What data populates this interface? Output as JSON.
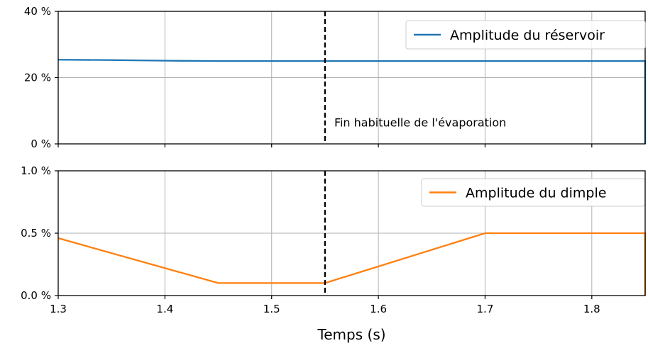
{
  "chart_data": [
    {
      "type": "line",
      "xlabel": "",
      "ylabel": "",
      "xlim": [
        1.3,
        1.85
      ],
      "ylim": [
        0,
        40
      ],
      "x_ticks": [
        1.3,
        1.4,
        1.5,
        1.6,
        1.7,
        1.8
      ],
      "y_ticks": [
        "0 %",
        "20 %",
        "40 %"
      ],
      "y_tick_values": [
        0,
        20,
        40
      ],
      "grid": true,
      "legend_position": "top-right",
      "series": [
        {
          "name": "Amplitude du réservoir",
          "color": "#1f77b4",
          "x": [
            1.3,
            1.35,
            1.4,
            1.45,
            1.5,
            1.55,
            1.6,
            1.7,
            1.8,
            1.85,
            1.85
          ],
          "y": [
            25.4,
            25.3,
            25.1,
            25.0,
            25.0,
            25.0,
            25.0,
            25.0,
            25.0,
            25.0,
            0
          ]
        }
      ],
      "vline": {
        "x": 1.55,
        "style": "dashed",
        "color": "#000000"
      },
      "annotations": [
        {
          "text": "Fin habituelle de l'évaporation",
          "x": 1.56,
          "y": 5
        }
      ]
    },
    {
      "type": "line",
      "xlabel": "Temps (s)",
      "ylabel": "",
      "xlim": [
        1.3,
        1.85
      ],
      "ylim": [
        0,
        1.0
      ],
      "x_ticks": [
        "1.3",
        "1.4",
        "1.5",
        "1.6",
        "1.7",
        "1.8"
      ],
      "x_tick_values": [
        1.3,
        1.4,
        1.5,
        1.6,
        1.7,
        1.8
      ],
      "y_ticks": [
        "0.0 %",
        "0.5 %",
        "1.0 %"
      ],
      "y_tick_values": [
        0.0,
        0.5,
        1.0
      ],
      "grid": true,
      "legend_position": "top-right",
      "series": [
        {
          "name": "Amplitude du dimple",
          "color": "#ff7f0e",
          "x": [
            1.3,
            1.45,
            1.55,
            1.7,
            1.85,
            1.85
          ],
          "y": [
            0.46,
            0.1,
            0.1,
            0.5,
            0.5,
            0.0
          ]
        }
      ],
      "vline": {
        "x": 1.55,
        "style": "dashed",
        "color": "#000000"
      }
    }
  ]
}
